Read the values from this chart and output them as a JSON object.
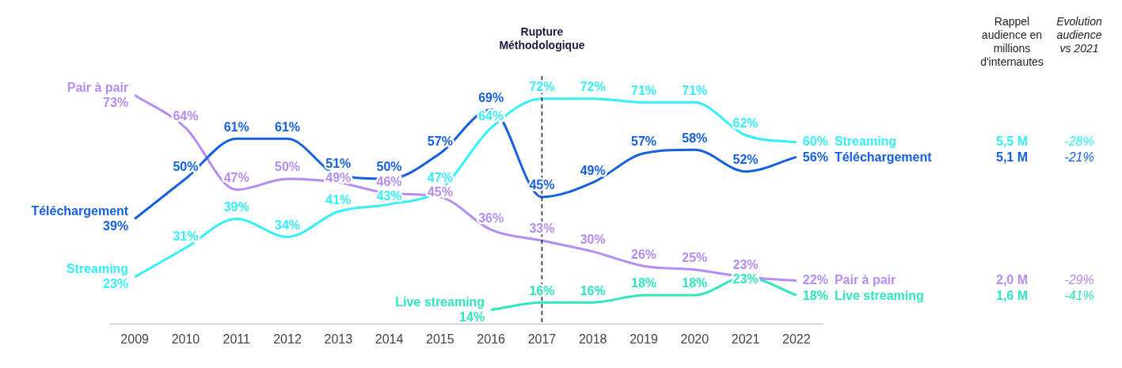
{
  "chart_data": {
    "type": "line",
    "categories": [
      "2009",
      "2010",
      "2011",
      "2012",
      "2013",
      "2014",
      "2015",
      "2016",
      "2017",
      "2018",
      "2019",
      "2020",
      "2021",
      "2022"
    ],
    "series": [
      {
        "name": "Streaming",
        "color": "#33f0fb",
        "values": [
          23,
          31,
          39,
          34,
          41,
          43,
          47,
          64,
          72,
          72,
          71,
          71,
          62,
          60
        ],
        "value_labels": [
          "23%",
          "31%",
          "39%",
          "34%",
          "41%",
          "43%",
          "47%",
          "64%",
          "72%",
          "72%",
          "71%",
          "71%",
          "62%",
          "60%"
        ]
      },
      {
        "name": "Téléchargement",
        "color": "#1560e0",
        "values": [
          39,
          50,
          61,
          61,
          51,
          50,
          57,
          69,
          45,
          49,
          57,
          58,
          52,
          56
        ],
        "value_labels": [
          "39%",
          "50%",
          "61%",
          "61%",
          "51%",
          "50%",
          "57%",
          "69%",
          "45%",
          "49%",
          "57%",
          "58%",
          "52%",
          "56%"
        ]
      },
      {
        "name": "Pair à pair",
        "color": "#b48cf5",
        "values": [
          73,
          64,
          47,
          50,
          49,
          46,
          45,
          36,
          33,
          30,
          26,
          25,
          23,
          22
        ],
        "value_labels": [
          "73%",
          "64%",
          "47%",
          "50%",
          "49%",
          "46%",
          "45%",
          "36%",
          "33%",
          "30%",
          "26%",
          "25%",
          "23%",
          "22%"
        ]
      },
      {
        "name": "Live streaming",
        "color": "#2ee6bf",
        "values": [
          null,
          null,
          null,
          null,
          null,
          null,
          null,
          14,
          16,
          16,
          18,
          18,
          23,
          18
        ],
        "value_labels": [
          null,
          null,
          null,
          null,
          null,
          null,
          null,
          "14%",
          "16%",
          "16%",
          "18%",
          "18%",
          "23%",
          "18%"
        ]
      }
    ],
    "ref_lines": [
      {
        "axis": "x",
        "value": "2017",
        "label": "Rupture Méthodologique",
        "color": "#1a1a40",
        "line_style": "dashed"
      }
    ],
    "annotations": [
      "Rappel audience en millions d'internautes",
      "Evolution audience vs 2021",
      "5,5 M",
      "5,1 M",
      "2,0 M",
      "1,6 M",
      "-28%",
      "-21%",
      "-29%",
      "-41%"
    ],
    "legend": false,
    "grid": false
  }
}
